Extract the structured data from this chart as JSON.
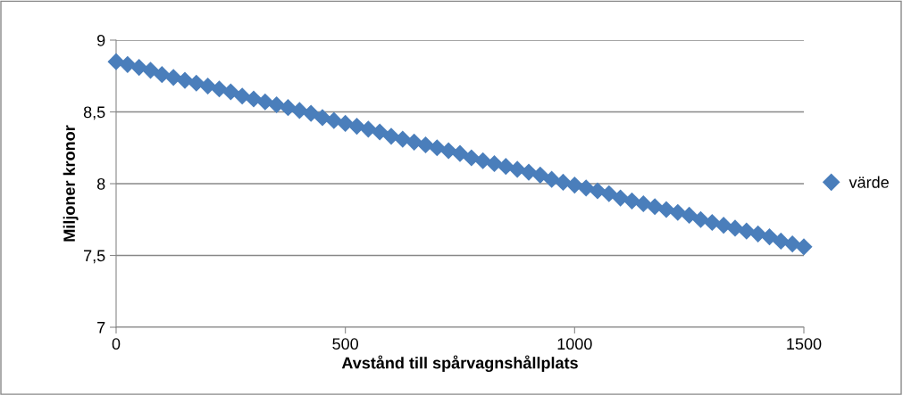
{
  "chart_data": {
    "type": "scatter",
    "xlabel": "Avstånd till spårvagnshållplats",
    "ylabel": "Miljoner kronor",
    "x": [
      0,
      25,
      50,
      75,
      100,
      125,
      150,
      175,
      200,
      225,
      250,
      275,
      300,
      325,
      350,
      375,
      400,
      425,
      450,
      475,
      500,
      525,
      550,
      575,
      600,
      625,
      650,
      675,
      700,
      725,
      750,
      775,
      800,
      825,
      850,
      875,
      900,
      925,
      950,
      975,
      1000,
      1025,
      1050,
      1075,
      1100,
      1125,
      1150,
      1175,
      1200,
      1225,
      1250,
      1275,
      1300,
      1325,
      1350,
      1375,
      1400,
      1425,
      1450,
      1475,
      1500
    ],
    "series": [
      {
        "name": "värde",
        "color": "#4a7ebb",
        "values": [
          8.85,
          8.83,
          8.81,
          8.79,
          8.76,
          8.74,
          8.72,
          8.7,
          8.68,
          8.66,
          8.64,
          8.61,
          8.59,
          8.57,
          8.55,
          8.53,
          8.51,
          8.49,
          8.46,
          8.44,
          8.42,
          8.4,
          8.38,
          8.36,
          8.33,
          8.31,
          8.29,
          8.27,
          8.25,
          8.23,
          8.21,
          8.18,
          8.16,
          8.14,
          8.12,
          8.1,
          8.08,
          8.06,
          8.03,
          8.01,
          7.99,
          7.97,
          7.95,
          7.93,
          7.9,
          7.88,
          7.86,
          7.84,
          7.82,
          7.8,
          7.78,
          7.75,
          7.73,
          7.71,
          7.69,
          7.67,
          7.65,
          7.63,
          7.6,
          7.58,
          7.56
        ]
      }
    ],
    "xlim": [
      0,
      1500
    ],
    "xticks": [
      0,
      500,
      1000,
      1500
    ],
    "ylim": [
      7,
      9
    ],
    "yticks": [
      7,
      {
        "value": 7.5,
        "label": "7,5"
      },
      8,
      {
        "value": 8.5,
        "label": "8,5"
      },
      9
    ],
    "grid": "y",
    "legend": "right",
    "marker": "diamond"
  }
}
